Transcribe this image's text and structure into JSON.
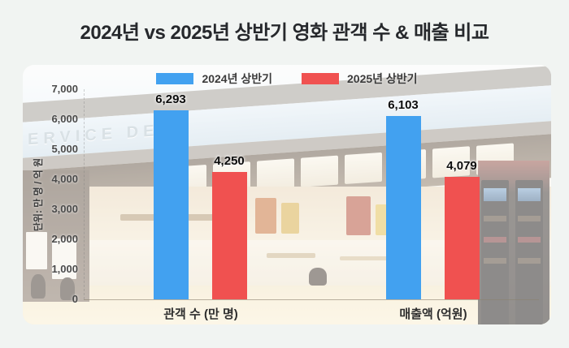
{
  "title": "2024년 vs 2025년 상반기 영화 관객 수 & 매출 비교",
  "photo": {
    "sign_text": "ERVICE DESK"
  },
  "chart_data": {
    "type": "bar",
    "title": "2024년 vs 2025년 상반기 영화 관객 수 & 매출 비교",
    "categories": [
      "관객 수 (만 명)",
      "매출액 (억원)"
    ],
    "series": [
      {
        "name": "2024년 상반기",
        "color": "#42a1f0",
        "values": [
          6293,
          6103
        ]
      },
      {
        "name": "2025년 상반기",
        "color": "#f05150",
        "values": [
          4250,
          4079
        ]
      }
    ],
    "value_labels": [
      [
        "6,293",
        "6,103"
      ],
      [
        "4,250",
        "4,079"
      ]
    ],
    "ylabel": "단위: 만 명 / 억 원",
    "ylim": [
      0,
      7000
    ],
    "ytick_step": 1000,
    "yticks": [
      "7,000",
      "6,000",
      "5,000",
      "4,000",
      "3,000",
      "2,000",
      "1,000",
      "0"
    ],
    "legend_position": "top-center",
    "grid": false
  }
}
